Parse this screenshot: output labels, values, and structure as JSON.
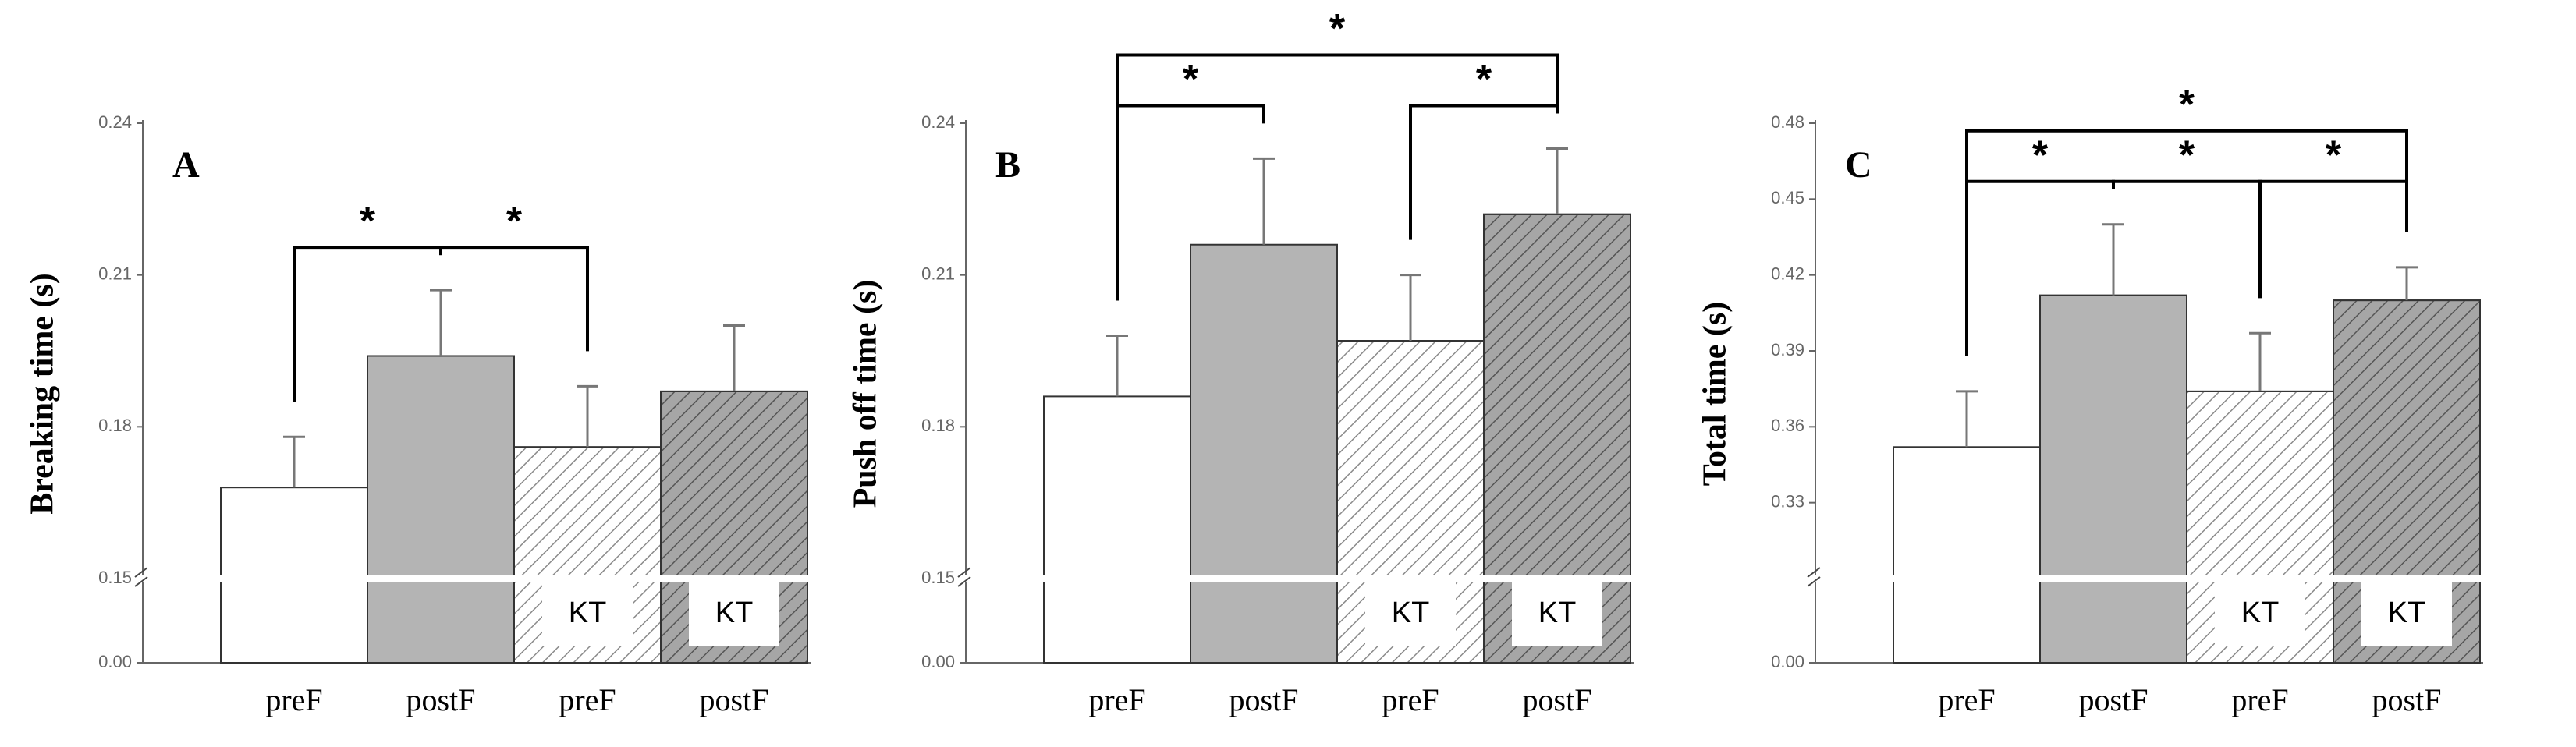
{
  "chart_data": [
    {
      "type": "bar",
      "panel": "A",
      "ylabel": "Breaking time (s)",
      "categories": [
        "preF",
        "postF",
        "preF",
        "postF"
      ],
      "values": [
        0.168,
        0.194,
        0.176,
        0.187
      ],
      "errors": [
        0.01,
        0.013,
        0.012,
        0.013
      ],
      "colors": [
        "#ffffff",
        "#b4b4b4",
        "#ffffff",
        "#a6a6a6"
      ],
      "hatch": [
        false,
        false,
        true,
        true
      ],
      "bar_labels": [
        null,
        null,
        "KT",
        "KT"
      ],
      "ylim": [
        0.15,
        0.24
      ],
      "yticks": [
        0.15,
        0.18,
        0.21,
        0.24
      ],
      "base_tick": {
        "value": 0,
        "label": "0.00"
      },
      "comparisons": [
        {
          "bars": [
            0,
            1
          ],
          "label": "*"
        },
        {
          "bars": [
            1,
            2
          ],
          "label": "*"
        }
      ]
    },
    {
      "type": "bar",
      "panel": "B",
      "ylabel": "Push off time (s)",
      "categories": [
        "preF",
        "postF",
        "preF",
        "postF"
      ],
      "values": [
        0.186,
        0.216,
        0.197,
        0.222
      ],
      "errors": [
        0.012,
        0.017,
        0.013,
        0.013
      ],
      "colors": [
        "#ffffff",
        "#b4b4b4",
        "#ffffff",
        "#a6a6a6"
      ],
      "hatch": [
        false,
        false,
        true,
        true
      ],
      "bar_labels": [
        null,
        null,
        "KT",
        "KT"
      ],
      "ylim": [
        0.15,
        0.24
      ],
      "yticks": [
        0.15,
        0.18,
        0.21,
        0.24
      ],
      "base_tick": {
        "value": 0,
        "label": "0.00"
      },
      "comparisons": [
        {
          "bars": [
            0,
            1
          ],
          "label": "*"
        },
        {
          "bars": [
            2,
            3
          ],
          "label": "*"
        },
        {
          "bars": [
            0,
            3
          ],
          "label": "*"
        }
      ]
    },
    {
      "type": "bar",
      "panel": "C",
      "ylabel": "Total time (s)",
      "categories": [
        "preF",
        "postF",
        "preF",
        "postF"
      ],
      "values": [
        0.352,
        0.412,
        0.374,
        0.41
      ],
      "errors": [
        0.022,
        0.028,
        0.023,
        0.013
      ],
      "colors": [
        "#ffffff",
        "#b4b4b4",
        "#ffffff",
        "#a6a6a6"
      ],
      "hatch": [
        false,
        false,
        true,
        true
      ],
      "bar_labels": [
        null,
        null,
        "KT",
        "KT"
      ],
      "ylim": [
        0.3,
        0.48
      ],
      "yticks": [
        0.33,
        0.36,
        0.39,
        0.42,
        0.45,
        0.48
      ],
      "base_tick": {
        "value": 0,
        "label": "0.00"
      },
      "comparisons": [
        {
          "bars": [
            0,
            1
          ],
          "label": "*"
        },
        {
          "bars": [
            1,
            2
          ],
          "label": "*"
        },
        {
          "bars": [
            2,
            3
          ],
          "label": "*"
        },
        {
          "bars": [
            0,
            3
          ],
          "label": "*"
        }
      ]
    }
  ]
}
